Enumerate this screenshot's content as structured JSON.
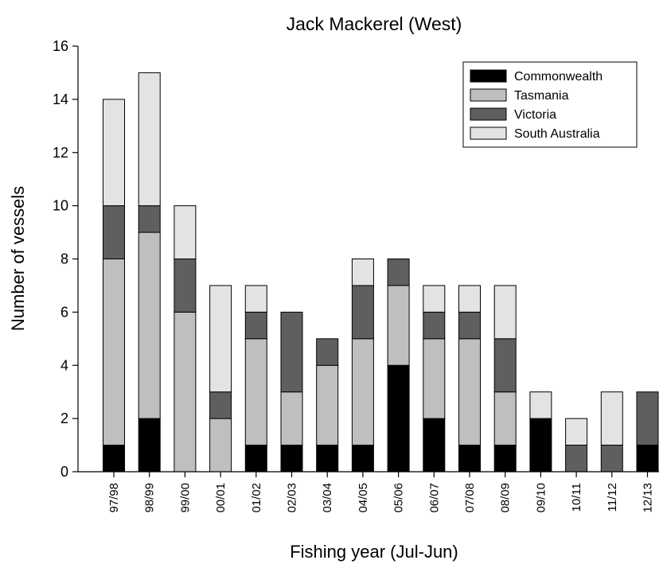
{
  "chart_data": {
    "type": "bar",
    "stacked": true,
    "title": "Jack Mackerel (West)",
    "xlabel": "Fishing year (Jul-Jun)",
    "ylabel": "Number of vessels",
    "ylim": [
      0,
      16
    ],
    "yticks": [
      "0",
      "2",
      "4",
      "6",
      "8",
      "10",
      "12",
      "14",
      "16"
    ],
    "categories": [
      "97/98",
      "98/99",
      "99/00",
      "00/01",
      "01/02",
      "02/03",
      "03/04",
      "04/05",
      "05/06",
      "06/07",
      "07/08",
      "08/09",
      "09/10",
      "10/11",
      "11/12",
      "12/13"
    ],
    "series": [
      {
        "name": "Commonwealth",
        "color": "#000000",
        "values": [
          1,
          2,
          0,
          0,
          1,
          1,
          1,
          1,
          4,
          2,
          1,
          1,
          2,
          0,
          0,
          1
        ]
      },
      {
        "name": "Tasmania",
        "color": "#bfbfbf",
        "values": [
          7,
          7,
          6,
          2,
          4,
          2,
          3,
          4,
          3,
          3,
          4,
          2,
          0,
          0,
          0,
          0
        ]
      },
      {
        "name": "Victoria",
        "color": "#5f5f5f",
        "values": [
          2,
          1,
          2,
          1,
          1,
          3,
          1,
          2,
          1,
          1,
          1,
          2,
          0,
          1,
          1,
          2
        ]
      },
      {
        "name": "South Australia",
        "color": "#e3e3e3",
        "values": [
          4,
          5,
          2,
          4,
          1,
          0,
          0,
          1,
          0,
          1,
          1,
          2,
          1,
          1,
          2,
          0
        ]
      }
    ],
    "legend_position": "top-right",
    "grid": false
  }
}
